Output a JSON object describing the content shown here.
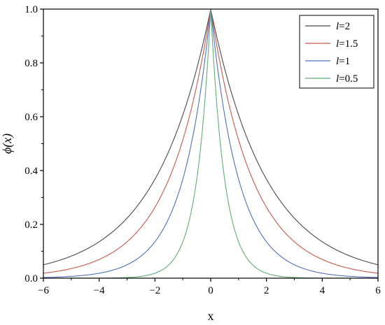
{
  "chart_data": {
    "type": "line",
    "xlabel": "x",
    "ylabel": "ϕ(x)",
    "xlim": [
      -6,
      6
    ],
    "ylim": [
      0,
      1.0
    ],
    "x_ticks": [
      -6,
      -4,
      -2,
      0,
      2,
      4,
      6
    ],
    "y_ticks": [
      0.0,
      0.2,
      0.4,
      0.6,
      0.8,
      1.0
    ],
    "x_tick_labels": [
      "−6",
      "−4",
      "−2",
      "0",
      "2",
      "4",
      "6"
    ],
    "y_tick_labels": [
      "0.0",
      "0.2",
      "0.4",
      "0.6",
      "0.8",
      "1.0"
    ],
    "grid": false,
    "legend_position": "top-right",
    "function": "exp(-|x|/l)",
    "x": [
      -6,
      -5.5,
      -5,
      -4.5,
      -4,
      -3.5,
      -3,
      -2.5,
      -2,
      -1.75,
      -1.5,
      -1.25,
      -1,
      -0.75,
      -0.5,
      -0.25,
      0,
      0.25,
      0.5,
      0.75,
      1,
      1.25,
      1.5,
      1.75,
      2,
      2.5,
      3,
      3.5,
      4,
      4.5,
      5,
      5.5,
      6
    ],
    "series": [
      {
        "name": "=2",
        "italic_prefix": "l",
        "color": "#4a4a4a",
        "values": [
          0.0498,
          0.0639,
          0.0821,
          0.1054,
          0.1353,
          0.1738,
          0.2231,
          0.2865,
          0.3679,
          0.4169,
          0.4724,
          0.5353,
          0.6065,
          0.6873,
          0.7788,
          0.8825,
          1.0,
          0.8825,
          0.7788,
          0.6873,
          0.6065,
          0.5353,
          0.4724,
          0.4169,
          0.3679,
          0.2865,
          0.2231,
          0.1738,
          0.1353,
          0.1054,
          0.0821,
          0.0639,
          0.0498
        ]
      },
      {
        "name": "=1.5",
        "italic_prefix": "l",
        "color": "#c8574a",
        "values": [
          0.0183,
          0.0256,
          0.0357,
          0.0498,
          0.0695,
          0.097,
          0.1353,
          0.1889,
          0.2636,
          0.3114,
          0.3679,
          0.4346,
          0.5134,
          0.6065,
          0.7165,
          0.8465,
          1.0,
          0.8465,
          0.7165,
          0.6065,
          0.5134,
          0.4346,
          0.3679,
          0.3114,
          0.2636,
          0.1889,
          0.1353,
          0.097,
          0.0695,
          0.0498,
          0.0357,
          0.0256,
          0.0183
        ]
      },
      {
        "name": "=1",
        "italic_prefix": "l",
        "color": "#4f6fc0",
        "values": [
          0.0025,
          0.0041,
          0.0067,
          0.0111,
          0.0183,
          0.0302,
          0.0498,
          0.0821,
          0.1353,
          0.1738,
          0.2231,
          0.2865,
          0.3679,
          0.4724,
          0.6065,
          0.7788,
          1.0,
          0.7788,
          0.6065,
          0.4724,
          0.3679,
          0.2865,
          0.2231,
          0.1738,
          0.1353,
          0.0821,
          0.0498,
          0.0302,
          0.0183,
          0.0111,
          0.0067,
          0.0041,
          0.0025
        ]
      },
      {
        "name": "=0.5",
        "italic_prefix": "l",
        "color": "#5fae73",
        "values": [
          0.0,
          0.0,
          0.0,
          0.0001,
          0.0003,
          0.0009,
          0.0025,
          0.0067,
          0.0183,
          0.0302,
          0.0498,
          0.0821,
          0.1353,
          0.2231,
          0.3679,
          0.6065,
          1.0,
          0.6065,
          0.3679,
          0.2231,
          0.1353,
          0.0821,
          0.0498,
          0.0302,
          0.0183,
          0.0067,
          0.0025,
          0.0009,
          0.0003,
          0.0001,
          0.0,
          0.0,
          0.0
        ]
      }
    ]
  }
}
